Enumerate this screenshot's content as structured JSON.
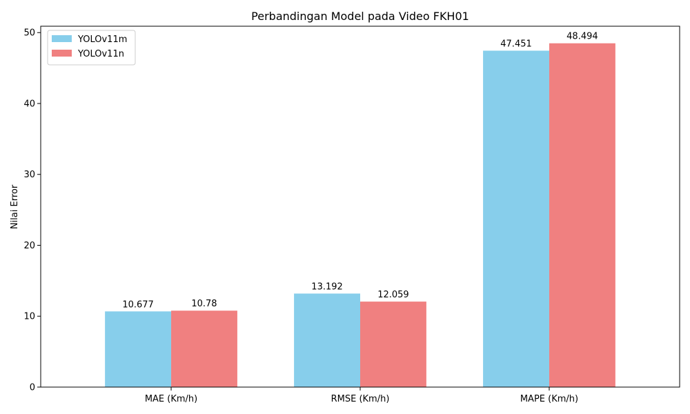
{
  "chart_data": {
    "type": "bar",
    "title": "Perbandingan Model pada Video FKH01",
    "xlabel": "",
    "ylabel": "Nilai Error",
    "categories": [
      "MAE (Km/h)",
      "RMSE (Km/h)",
      "MAPE (Km/h)"
    ],
    "series": [
      {
        "name": "YOLOv11m",
        "color": "#87CEEB",
        "values": [
          10.677,
          13.192,
          47.451
        ]
      },
      {
        "name": "YOLOv11n",
        "color": "#F08080",
        "values": [
          10.78,
          12.059,
          48.494
        ]
      }
    ],
    "ylim": [
      0,
      50.9
    ],
    "yticks": [
      0,
      10,
      20,
      30,
      40,
      50
    ],
    "grid": false,
    "legend_position": "top-left"
  }
}
